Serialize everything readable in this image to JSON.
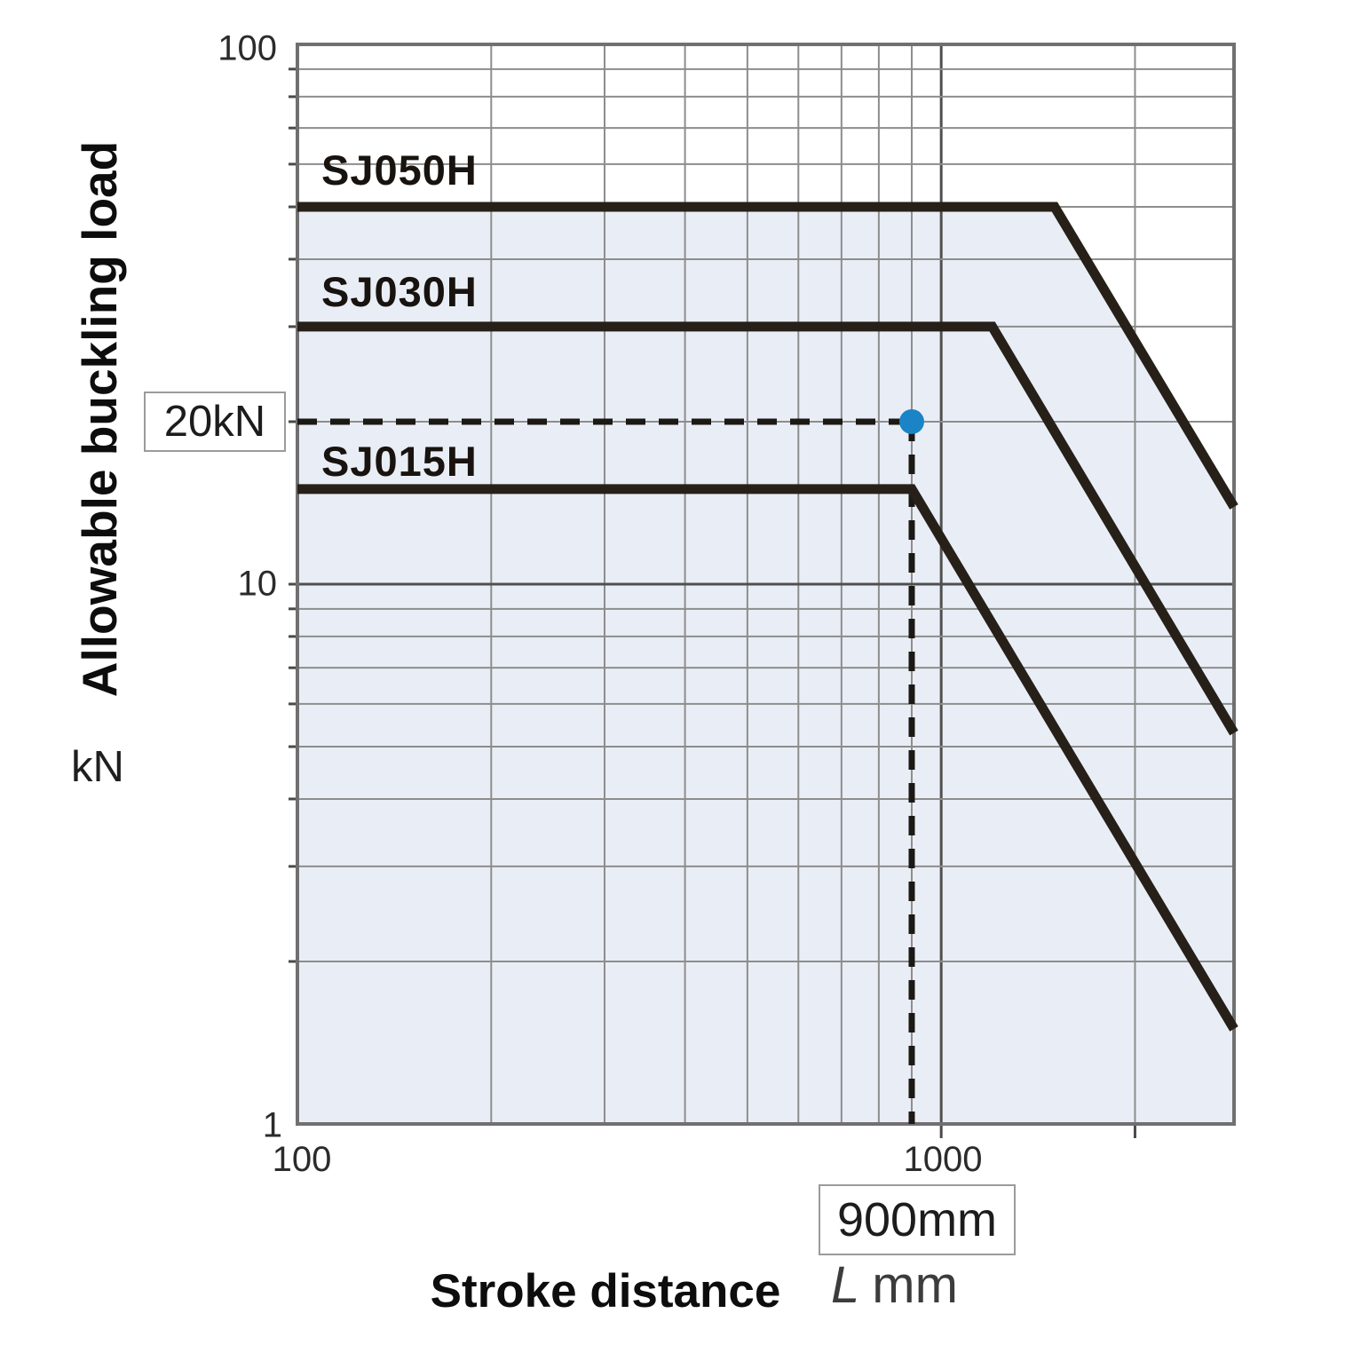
{
  "y_axis": {
    "label": "Allowable buckling load",
    "unit": "kN",
    "ticks": [
      "100",
      "10",
      "1"
    ]
  },
  "x_axis": {
    "label": "Stroke distance",
    "unit_var": "L",
    "unit": "mm",
    "ticks": [
      "100",
      "1000"
    ]
  },
  "annotations": {
    "load_label": "20kN",
    "stroke_label": "900mm"
  },
  "chart_data": {
    "type": "line",
    "title": "",
    "xlabel": "Stroke distance L (mm)",
    "ylabel": "Allowable buckling load (kN)",
    "x_scale": "log",
    "y_scale": "log",
    "xlim": [
      100,
      2850
    ],
    "ylim": [
      1,
      100
    ],
    "x_ticks_labeled": [
      100,
      1000
    ],
    "y_ticks_labeled": [
      1,
      10,
      100
    ],
    "grid": true,
    "legend_position": "labels-on-lines",
    "series": [
      {
        "name": "SJ050H",
        "flat_load_kN": 50,
        "bend_stroke_mm": 1500,
        "points": [
          [
            100,
            50
          ],
          [
            1500,
            50
          ],
          [
            2850,
            13.9
          ]
        ]
      },
      {
        "name": "SJ030H",
        "flat_load_kN": 30,
        "bend_stroke_mm": 1200,
        "points": [
          [
            100,
            30
          ],
          [
            1200,
            30
          ],
          [
            2850,
            5.3
          ]
        ]
      },
      {
        "name": "SJ015H",
        "flat_load_kN": 15,
        "bend_stroke_mm": 900,
        "points": [
          [
            100,
            15
          ],
          [
            900,
            15
          ],
          [
            2850,
            1.5
          ]
        ]
      }
    ],
    "slope_after_bend_loglog": -2,
    "annotation_point": {
      "x": 900,
      "y": 20
    },
    "colors": {
      "line": "#262019",
      "shade": "#e9eef6",
      "grid_minor": "#8d8d8d",
      "grid_major": "#4f4f4f",
      "frame": "#707070",
      "dash": "#1c1814",
      "dot": "#1b84c6",
      "box_border": "#9b9b9b"
    }
  }
}
